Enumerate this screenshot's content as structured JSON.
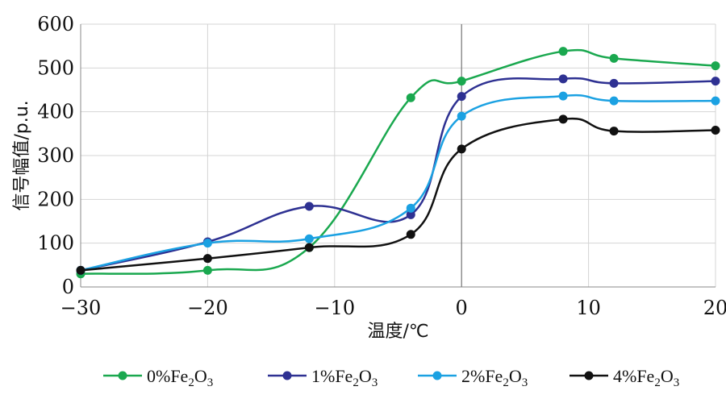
{
  "chart_data": {
    "type": "line",
    "title": "",
    "xlabel": "温度/℃",
    "ylabel": "信号幅值/p.u.",
    "xlim": [
      -30,
      20
    ],
    "ylim": [
      0,
      600
    ],
    "x_ticks": [
      -30,
      -20,
      -10,
      0,
      10,
      20
    ],
    "y_ticks": [
      0,
      100,
      200,
      300,
      400,
      500,
      600
    ],
    "x_tick_labels": [
      "−30",
      "−20",
      "−10",
      "0",
      "10",
      "20"
    ],
    "y_tick_labels": [
      "0",
      "100",
      "200",
      "300",
      "400",
      "500",
      "600"
    ],
    "grid": true,
    "legend_position": "bottom",
    "x": [
      -30,
      -20,
      -12,
      -4,
      0,
      8,
      12,
      20
    ],
    "series": [
      {
        "name": "0%Fe2O3",
        "label_main": "0%Fe",
        "sub1": "2",
        "mid": "O",
        "sub2": "3",
        "color": "#1aa84f",
        "values": [
          30,
          38,
          90,
          432,
          470,
          538,
          522,
          505
        ]
      },
      {
        "name": "1%Fe2O3",
        "label_main": "1%Fe",
        "sub1": "2",
        "mid": "O",
        "sub2": "3",
        "color": "#2e3192",
        "values": [
          38,
          103,
          184,
          165,
          435,
          475,
          465,
          470
        ]
      },
      {
        "name": "2%Fe2O3",
        "label_main": "2%Fe",
        "sub1": "2",
        "mid": "O",
        "sub2": "3",
        "color": "#1ba1e2",
        "values": [
          38,
          100,
          110,
          180,
          390,
          436,
          425,
          425
        ]
      },
      {
        "name": "4%Fe2O3",
        "label_main": "4%Fe",
        "sub1": "2",
        "mid": "O",
        "sub2": "3",
        "color": "#111111",
        "values": [
          38,
          65,
          90,
          120,
          315,
          383,
          356,
          358
        ]
      }
    ]
  }
}
